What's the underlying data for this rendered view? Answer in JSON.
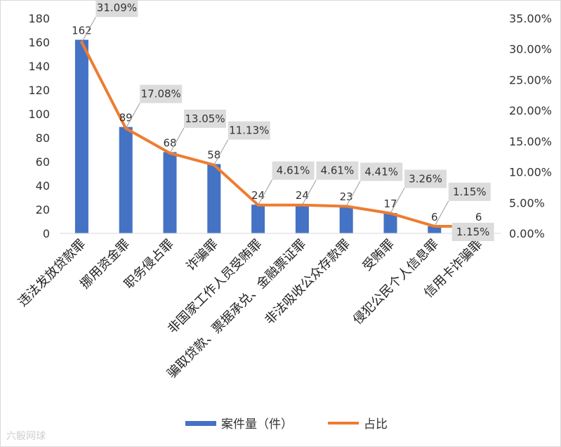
{
  "chart_data": {
    "type": "bar",
    "categories": [
      "违法发放贷款罪",
      "挪用资金罪",
      "职务侵占罪",
      "诈骗罪",
      "非国家工作人员受贿罪",
      "骗取贷款、票据承兑、金融票证罪",
      "非法吸收公众存款罪",
      "受贿罪",
      "侵犯公民个人信息罪",
      "信用卡诈骗罪"
    ],
    "series": [
      {
        "name": "案件量（件）",
        "type": "bar",
        "axis": "left",
        "color": "#4472c4",
        "values": [
          162,
          89,
          68,
          58,
          24,
          24,
          23,
          17,
          6,
          6
        ],
        "labels": [
          "162",
          "89",
          "68",
          "58",
          "24",
          "24",
          "23",
          "17",
          "6",
          "6"
        ]
      },
      {
        "name": "占比",
        "type": "line",
        "axis": "right",
        "color": "#ed7d31",
        "values": [
          31.09,
          17.08,
          13.05,
          11.13,
          4.61,
          4.61,
          4.41,
          3.26,
          1.15,
          1.15
        ],
        "labels": [
          "31.09%",
          "17.08%",
          "13.05%",
          "11.13%",
          "4.61%",
          "4.61%",
          "4.41%",
          "3.26%",
          "1.15%",
          "1.15%"
        ]
      }
    ],
    "y_left": {
      "min": 0,
      "max": 180,
      "ticks": [
        "0",
        "20",
        "40",
        "60",
        "80",
        "100",
        "120",
        "140",
        "160",
        "180"
      ]
    },
    "y_right": {
      "min": 0,
      "max": 35,
      "ticks": [
        "0.00%",
        "5.00%",
        "10.00%",
        "15.00%",
        "20.00%",
        "25.00%",
        "30.00%",
        "35.00%"
      ]
    },
    "legend_position": "bottom",
    "grid": false
  },
  "watermark": "六骰网球"
}
